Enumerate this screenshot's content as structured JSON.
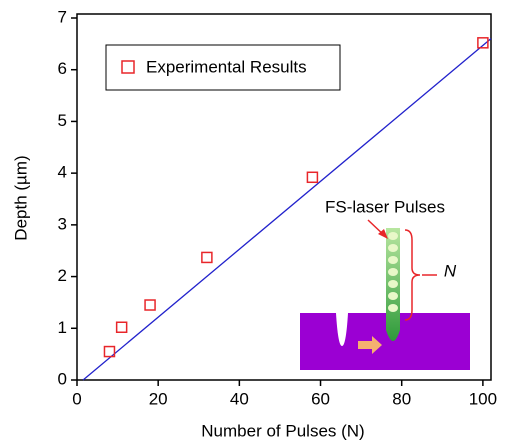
{
  "chart_data": {
    "type": "scatter",
    "x_label": "Number of Pulses (N)",
    "y_label": "Depth (µm)",
    "series": [
      {
        "name": "Experimental Results",
        "color": "#e8262a",
        "x": [
          8,
          11,
          18,
          32,
          58,
          100
        ],
        "values": [
          0.55,
          1.02,
          1.45,
          2.37,
          3.92,
          6.52
        ]
      }
    ],
    "fit": {
      "color": "#2222cc",
      "x": [
        1.5,
        102
      ],
      "values": [
        0,
        6.6
      ]
    },
    "xlim": [
      0,
      102
    ],
    "ylim": [
      0,
      7
    ],
    "xticks": [
      0,
      20,
      40,
      60,
      80,
      100
    ],
    "yticks": [
      0,
      1,
      2,
      3,
      4,
      5,
      6,
      7
    ],
    "annotations": [
      "FS-laser Pulses",
      "N"
    ]
  }
}
